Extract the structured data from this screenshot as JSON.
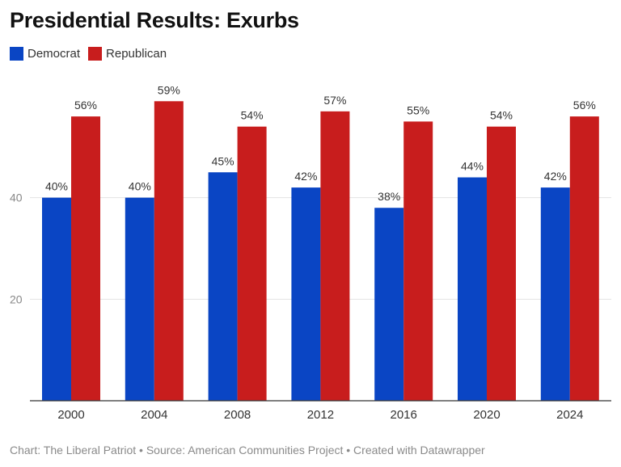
{
  "title": "Presidential Results: Exurbs",
  "footer": "Chart: The Liberal Patriot • Source: American Communities Project • Created with Datawrapper",
  "legend": [
    {
      "name": "Democrat",
      "color": "#0a45c4"
    },
    {
      "name": "Republican",
      "color": "#c81d1d"
    }
  ],
  "chart_data": {
    "type": "bar",
    "title": "Presidential Results: Exurbs",
    "categories": [
      "2000",
      "2004",
      "2008",
      "2012",
      "2016",
      "2020",
      "2024"
    ],
    "series": [
      {
        "name": "Democrat",
        "color": "#0a45c4",
        "values": [
          40,
          40,
          45,
          42,
          38,
          44,
          42
        ],
        "labels": [
          "40%",
          "40%",
          "45%",
          "42%",
          "38%",
          "44%",
          "42%"
        ]
      },
      {
        "name": "Republican",
        "color": "#c81d1d",
        "values": [
          56,
          59,
          54,
          57,
          55,
          54,
          56
        ],
        "labels": [
          "56%",
          "59%",
          "54%",
          "57%",
          "55%",
          "54%",
          "56%"
        ]
      }
    ],
    "yticks": [
      20,
      40
    ],
    "ylim": [
      0,
      60
    ],
    "xlabel": "",
    "ylabel": "",
    "grid": true,
    "legend_position": "top-left"
  }
}
